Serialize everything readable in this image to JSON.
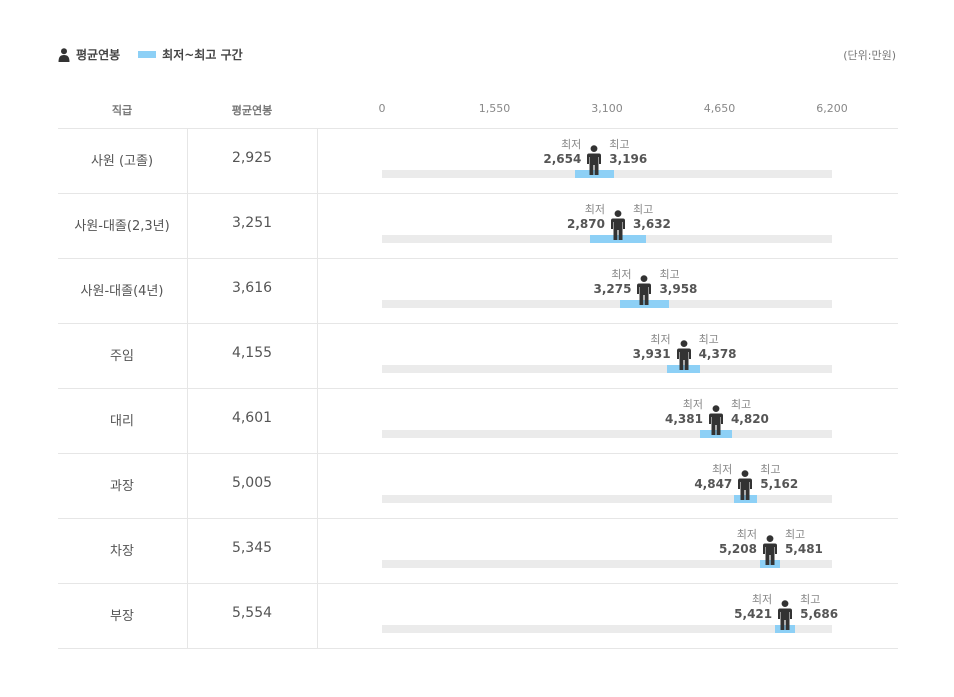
{
  "legend": {
    "avg_label": "평균연봉",
    "range_label": "최저~최고 구간",
    "person_icon": "person-icon"
  },
  "unit": "(단위:만원)",
  "headers": {
    "rank": "직급",
    "avg": "평균연봉"
  },
  "ticks": [
    "0",
    "1,550",
    "3,100",
    "4,650",
    "6,200"
  ],
  "min_caption": "최저",
  "max_caption": "최고",
  "colors": {
    "range": "#8dd0f6",
    "track": "#ebebeb",
    "figure": "#333333"
  },
  "chart_data": {
    "type": "bar",
    "xlim": [
      0,
      6200
    ],
    "x_ticks": [
      0,
      1550,
      3100,
      4650,
      6200
    ],
    "rows": [
      {
        "rank": "사원 (고졸)",
        "avg": 2925,
        "avg_text": "2,925",
        "min": 2654,
        "min_text": "2,654",
        "max": 3196,
        "max_text": "3,196"
      },
      {
        "rank": "사원-대졸(2,3년)",
        "avg": 3251,
        "avg_text": "3,251",
        "min": 2870,
        "min_text": "2,870",
        "max": 3632,
        "max_text": "3,632"
      },
      {
        "rank": "사원-대졸(4년)",
        "avg": 3616,
        "avg_text": "3,616",
        "min": 3275,
        "min_text": "3,275",
        "max": 3958,
        "max_text": "3,958"
      },
      {
        "rank": "주임",
        "avg": 4155,
        "avg_text": "4,155",
        "min": 3931,
        "min_text": "3,931",
        "max": 4378,
        "max_text": "4,378"
      },
      {
        "rank": "대리",
        "avg": 4601,
        "avg_text": "4,601",
        "min": 4381,
        "min_text": "4,381",
        "max": 4820,
        "max_text": "4,820"
      },
      {
        "rank": "과장",
        "avg": 5005,
        "avg_text": "5,005",
        "min": 4847,
        "min_text": "4,847",
        "max": 5162,
        "max_text": "5,162"
      },
      {
        "rank": "차장",
        "avg": 5345,
        "avg_text": "5,345",
        "min": 5208,
        "min_text": "5,208",
        "max": 5481,
        "max_text": "5,481"
      },
      {
        "rank": "부장",
        "avg": 5554,
        "avg_text": "5,554",
        "min": 5421,
        "min_text": "5,421",
        "max": 5686,
        "max_text": "5,686"
      }
    ]
  }
}
